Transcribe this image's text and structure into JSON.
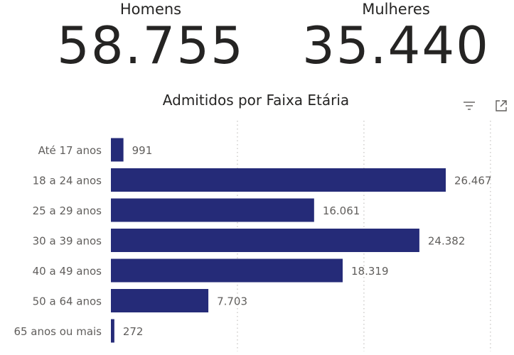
{
  "kpis": {
    "homens": {
      "label": "Homens",
      "value": "58.755"
    },
    "mulheres": {
      "label": "Mulheres",
      "value": "35.440"
    }
  },
  "icons": {
    "filter": "filter-icon",
    "expand": "expand-icon"
  },
  "colors": {
    "bar": "#252B78",
    "grid": "#C8C6C4",
    "text": "#252423",
    "label": "#605E5C"
  },
  "chart_data": {
    "type": "bar",
    "orientation": "horizontal",
    "title": "Admitidos por Faixa Etária",
    "categories": [
      "Até 17 anos",
      "18 a 24 anos",
      "25 a 29 anos",
      "30 a 39 anos",
      "40 a 49 anos",
      "50 a 64 anos",
      "65 anos ou mais"
    ],
    "values": [
      991,
      26467,
      16061,
      24382,
      18319,
      7703,
      272
    ],
    "value_labels": [
      "991",
      "26.467",
      "16.061",
      "24.382",
      "18.319",
      "7.703",
      "272"
    ],
    "xlim": [
      0,
      30000
    ],
    "grid": true,
    "legend": "none"
  }
}
